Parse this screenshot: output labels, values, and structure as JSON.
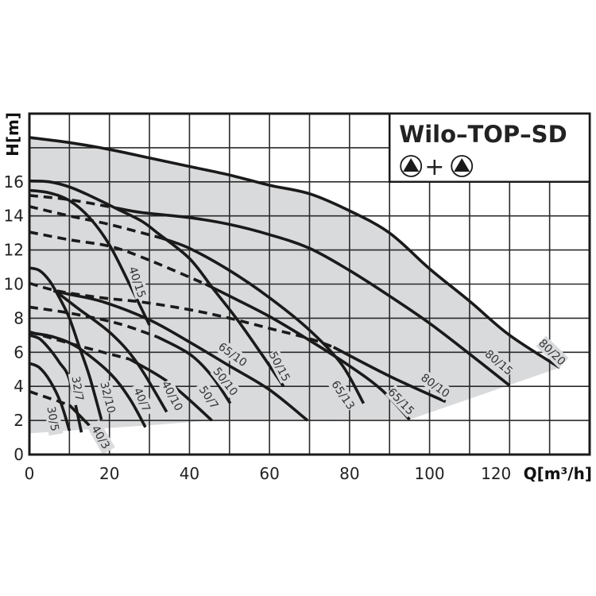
{
  "chart_data": {
    "type": "line",
    "title": "Wilo–TOP–SD",
    "legend_symbol": {
      "left": "pump-triangle-icon",
      "operator": "+",
      "right": "pump-triangle-icon"
    },
    "xlabel": "Q[m³/h]",
    "ylabel": "H[m]",
    "xlim": [
      0,
      140
    ],
    "ylim": [
      0,
      20
    ],
    "xticks": [
      0,
      20,
      40,
      60,
      80,
      100,
      120
    ],
    "xtick_labels": [
      "0",
      "20",
      "40",
      "60",
      "80",
      "100",
      "120"
    ],
    "yticks": [
      0,
      2,
      4,
      6,
      8,
      10,
      12,
      14,
      16
    ],
    "ytick_labels": [
      "0",
      "2",
      "4",
      "6",
      "8",
      "10",
      "12",
      "14",
      "16"
    ],
    "grid": true,
    "grid_step": {
      "x": 10,
      "y": 2
    },
    "legend_placement": "top-right",
    "colors": {
      "curve": "#1a1a1a",
      "area": "#d9dadc",
      "grid": "#2a2a2a"
    },
    "operating_area": [
      [
        0,
        18.6
      ],
      [
        10,
        18.3
      ],
      [
        20,
        17.9
      ],
      [
        30,
        17.4
      ],
      [
        40,
        16.9
      ],
      [
        50,
        16.4
      ],
      [
        60,
        15.8
      ],
      [
        70,
        15.4
      ],
      [
        80,
        14.3
      ],
      [
        90,
        13.0
      ],
      [
        100,
        10.9
      ],
      [
        110,
        9.0
      ],
      [
        120,
        7.0
      ],
      [
        132.5,
        5.1
      ],
      [
        95,
        2.05
      ],
      [
        45.6,
        2.0
      ],
      [
        29,
        1.7
      ],
      [
        0,
        1.25
      ]
    ],
    "series": [
      {
        "name": "80/20",
        "style": "solid",
        "points": [
          [
            0,
            18.6
          ],
          [
            10,
            18.3
          ],
          [
            20,
            17.9
          ],
          [
            30,
            17.4
          ],
          [
            40,
            16.9
          ],
          [
            50,
            16.4
          ],
          [
            60,
            15.8
          ],
          [
            70,
            15.3
          ],
          [
            80,
            14.3
          ],
          [
            90,
            13.0
          ],
          [
            100,
            10.9
          ],
          [
            110,
            9.0
          ],
          [
            120,
            7.0
          ],
          [
            132.5,
            5.1
          ]
        ]
      },
      {
        "style": "dashed",
        "points": [
          [
            0,
            15.2
          ],
          [
            10,
            14.95
          ],
          [
            22,
            14.45
          ]
        ]
      },
      {
        "name": "80/15",
        "style": "solid",
        "points": [
          [
            22,
            14.45
          ],
          [
            28,
            14.2
          ],
          [
            40,
            13.9
          ],
          [
            50,
            13.5
          ],
          [
            60,
            12.9
          ],
          [
            70,
            12.1
          ],
          [
            80,
            10.8
          ],
          [
            90,
            9.3
          ],
          [
            100,
            7.7
          ],
          [
            110,
            5.9
          ],
          [
            120,
            4.05
          ]
        ]
      },
      {
        "name": "50/15",
        "style": "solid",
        "points": [
          [
            0,
            16.05
          ],
          [
            5,
            16.0
          ],
          [
            10,
            15.7
          ],
          [
            15,
            15.2
          ],
          [
            22,
            14.4
          ],
          [
            28,
            13.7
          ],
          [
            32,
            13.0
          ],
          [
            40,
            11.5
          ],
          [
            46,
            9.7
          ],
          [
            52,
            7.9
          ],
          [
            58,
            5.9
          ],
          [
            63.5,
            4.0
          ]
        ]
      },
      {
        "name": "40/15",
        "style": "solid",
        "points": [
          [
            0,
            15.5
          ],
          [
            5,
            15.35
          ],
          [
            10,
            14.9
          ],
          [
            15,
            13.9
          ],
          [
            20,
            12.3
          ],
          [
            25,
            10.0
          ],
          [
            30,
            7.6
          ]
        ]
      },
      {
        "style": "dashed",
        "points": [
          [
            0,
            14.55
          ],
          [
            10,
            14.0
          ],
          [
            20,
            13.5
          ],
          [
            33,
            12.7
          ]
        ]
      },
      {
        "name": "65/13",
        "style": "solid",
        "points": [
          [
            33,
            12.7
          ],
          [
            40,
            12.1
          ],
          [
            50,
            10.8
          ],
          [
            60,
            9.2
          ],
          [
            70,
            7.3
          ],
          [
            78,
            5.3
          ],
          [
            83.5,
            3.0
          ]
        ]
      },
      {
        "style": "dashed",
        "points": [
          [
            0,
            13.05
          ],
          [
            10,
            12.6
          ],
          [
            20.4,
            12.2
          ],
          [
            30,
            11.4
          ],
          [
            44,
            10.0
          ]
        ]
      },
      {
        "name": "65/15",
        "style": "solid",
        "points": [
          [
            44,
            10.0
          ],
          [
            50,
            9.3
          ],
          [
            60,
            8.1
          ],
          [
            70,
            6.7
          ],
          [
            80,
            5.2
          ],
          [
            88,
            3.8
          ],
          [
            95,
            2.05
          ]
        ]
      },
      {
        "style": "dashed",
        "points": [
          [
            0,
            10.05
          ],
          [
            7,
            9.6
          ],
          [
            18,
            9.2
          ],
          [
            28,
            8.95
          ],
          [
            40,
            8.5
          ],
          [
            50,
            8.0
          ],
          [
            60,
            7.4
          ],
          [
            70,
            6.8
          ],
          [
            76,
            6.3
          ]
        ]
      },
      {
        "name": "80/10",
        "style": "solid",
        "points": [
          [
            76,
            6.3
          ],
          [
            90,
            4.6
          ],
          [
            104,
            3.1
          ]
        ]
      },
      {
        "name": "65/10",
        "style": "solid",
        "points": [
          [
            6,
            9.6
          ],
          [
            10,
            9.4
          ],
          [
            18.5,
            8.95
          ],
          [
            30,
            7.9
          ],
          [
            40,
            6.6
          ],
          [
            50,
            5.2
          ],
          [
            60,
            3.8
          ],
          [
            69.5,
            2.0
          ]
        ]
      },
      {
        "style": "dashed",
        "points": [
          [
            0,
            8.65
          ],
          [
            10,
            8.3
          ],
          [
            22,
            7.7
          ],
          [
            32,
            6.9
          ]
        ]
      },
      {
        "name": "50/10",
        "style": "solid",
        "points": [
          [
            32,
            6.9
          ],
          [
            40,
            5.9
          ],
          [
            45.6,
            4.6
          ],
          [
            50.2,
            3.0
          ]
        ]
      },
      {
        "style": "dashed",
        "points": [
          [
            0,
            7.2
          ],
          [
            12,
            6.4
          ],
          [
            25,
            5.6
          ]
        ]
      },
      {
        "name": "50/7",
        "style": "solid",
        "points": [
          [
            25,
            5.6
          ],
          [
            35,
            4.2
          ],
          [
            45.6,
            2.0
          ]
        ]
      },
      {
        "name": "40/10",
        "style": "solid",
        "points": [
          [
            7,
            9.5
          ],
          [
            12,
            8.6
          ],
          [
            20.4,
            7.1
          ],
          [
            27,
            5.35
          ],
          [
            34.3,
            2.5
          ]
        ]
      },
      {
        "name": "40/7",
        "style": "solid",
        "points": [
          [
            0,
            7.15
          ],
          [
            6,
            6.9
          ],
          [
            12,
            6.3
          ],
          [
            20,
            4.8
          ],
          [
            25,
            3.3
          ],
          [
            29,
            1.6
          ]
        ]
      },
      {
        "name": "32/10",
        "style": "solid",
        "points": [
          [
            0,
            10.95
          ],
          [
            2.5,
            10.8
          ],
          [
            5,
            10.2
          ],
          [
            7.5,
            9.2
          ],
          [
            10,
            8.0
          ],
          [
            12.5,
            6.3
          ],
          [
            15,
            4.6
          ],
          [
            18,
            2.05
          ]
        ]
      },
      {
        "name": "32/7",
        "style": "solid",
        "points": [
          [
            0,
            7.0
          ],
          [
            2.5,
            6.8
          ],
          [
            5,
            6.2
          ],
          [
            7.5,
            5.4
          ],
          [
            10,
            4.4
          ],
          [
            13,
            1.3
          ]
        ]
      },
      {
        "name": "30/5",
        "style": "solid",
        "points": [
          [
            0,
            5.35
          ],
          [
            2.5,
            5.1
          ],
          [
            5.2,
            4.3
          ],
          [
            7.9,
            3.0
          ],
          [
            10,
            1.4
          ]
        ]
      },
      {
        "style": "dashed",
        "points": [
          [
            0,
            3.7
          ],
          [
            10,
            2.9
          ]
        ]
      },
      {
        "name": "40/3",
        "style": "solid",
        "points": [
          [
            10,
            2.9
          ],
          [
            15,
            1.7
          ]
        ]
      }
    ]
  }
}
